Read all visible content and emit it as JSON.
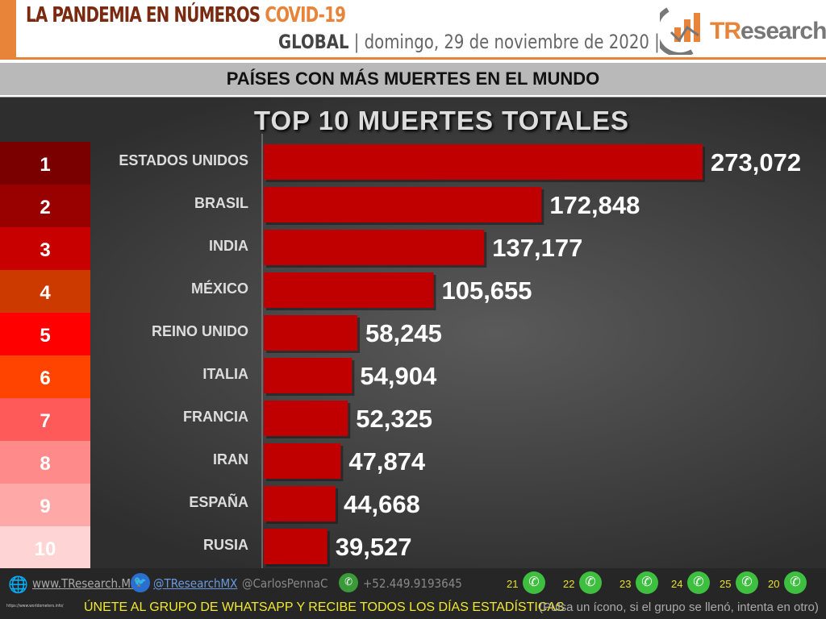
{
  "header": {
    "title_main": "LA PANDEMIA EN NÚMEROS",
    "title_accent": "COVID-19",
    "scope": "GLOBAL",
    "date": "domingo, 29 de noviembre de 2020",
    "brand_prefix": "TR",
    "brand_suffix": "esearch"
  },
  "subtitle": "PAÍSES CON MÁS MUERTES EN EL MUNDO",
  "chart_data": {
    "type": "bar",
    "orientation": "horizontal",
    "title": "TOP 10 MUERTES TOTALES",
    "ranks": [
      "1",
      "2",
      "3",
      "4",
      "5",
      "6",
      "7",
      "8",
      "9",
      "10"
    ],
    "rank_colors": [
      "#7a0000",
      "#990000",
      "#c80000",
      "#cc3a00",
      "#ff0000",
      "#ff4400",
      "#ff5a5a",
      "#ff8a8a",
      "#ffa8a8",
      "#ffd4d4"
    ],
    "categories": [
      "ESTADOS UNIDOS",
      "BRASIL",
      "INDIA",
      "MÉXICO",
      "REINO UNIDO",
      "ITALIA",
      "FRANCIA",
      "IRAN",
      "ESPAÑA",
      "RUSIA"
    ],
    "values": [
      273072,
      172848,
      137177,
      105655,
      58245,
      54904,
      52325,
      47874,
      44668,
      39527
    ],
    "labels": [
      "273,072",
      "172,848",
      "137,177",
      "105,655",
      "58,245",
      "54,904",
      "52,325",
      "47,874",
      "44,668",
      "39,527"
    ],
    "bar_color": "#c00000"
  },
  "footer": {
    "website": "www.TResearch.Mx",
    "twitter": "@TResearchMX",
    "personal": "@CarlosPennaC",
    "phone": "+52.449.9193645",
    "groups": [
      "21",
      "22",
      "23",
      "24",
      "25",
      "20"
    ],
    "source": "https://www.worldometers.info/",
    "cta": "ÚNETE AL GRUPO DE WHATSAPP Y RECIBE TODOS LOS DÍAS ESTADÍSTICAS",
    "cta_note": "(Pulsa un ícono, si el grupo se llenó, intenta en otro)"
  }
}
